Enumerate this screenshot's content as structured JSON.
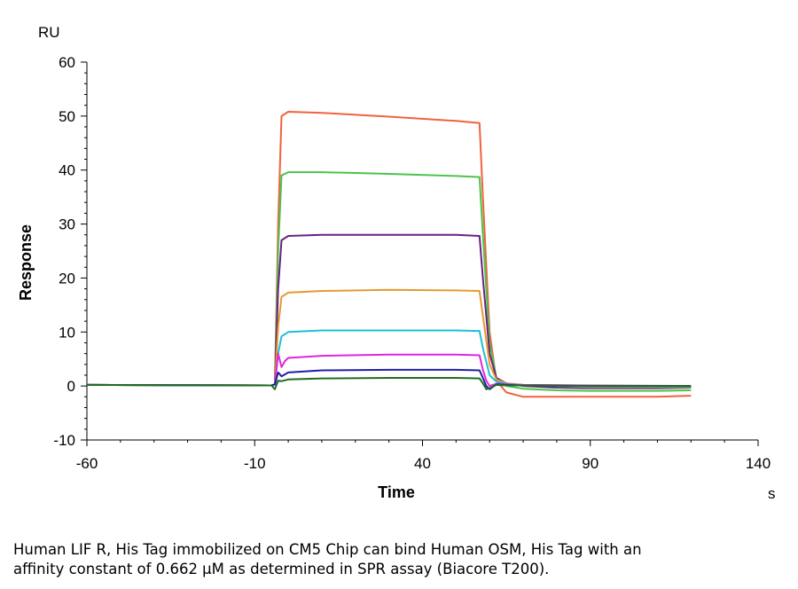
{
  "chart_data": {
    "type": "line",
    "ylabel": "Response",
    "xlabel": "Time",
    "y_unit": "RU",
    "x_unit": "s",
    "xlim": [
      -60,
      140
    ],
    "ylim": [
      -10,
      60
    ],
    "x_ticks": [
      "-60",
      "-10",
      "40",
      "90",
      "140"
    ],
    "y_ticks": [
      "-10",
      "0",
      "10",
      "20",
      "30",
      "40",
      "50",
      "60"
    ],
    "grid": false,
    "series": [
      {
        "color": "#F0623F",
        "x": [
          -60,
          -5,
          -4,
          -3,
          -2,
          0,
          10,
          30,
          50,
          57,
          58,
          60,
          62,
          65,
          70,
          80,
          90,
          100,
          110,
          120
        ],
        "y": [
          0.2,
          0.1,
          0.3,
          30,
          50,
          50.8,
          50.6,
          49.9,
          49.1,
          48.7,
          35,
          10,
          1,
          -1.2,
          -2,
          -2,
          -2,
          -2,
          -2,
          -1.8
        ]
      },
      {
        "color": "#4CC34C",
        "x": [
          -60,
          -5,
          -4,
          -3,
          -2,
          0,
          10,
          30,
          50,
          57,
          58,
          60,
          62,
          65,
          70,
          80,
          90,
          100,
          110,
          120
        ],
        "y": [
          0.2,
          0.1,
          0.3,
          25,
          39,
          39.6,
          39.6,
          39.3,
          38.9,
          38.7,
          28,
          8,
          1.5,
          0,
          -0.5,
          -0.8,
          -0.9,
          -0.9,
          -0.9,
          -0.8
        ]
      },
      {
        "color": "#6B1F82",
        "x": [
          -60,
          -5,
          -4,
          -3,
          -2,
          0,
          10,
          30,
          50,
          57,
          58,
          60,
          62,
          65,
          70,
          80,
          90,
          100,
          110,
          120
        ],
        "y": [
          0.2,
          0.1,
          0.3,
          18,
          27,
          27.8,
          28,
          28,
          28,
          27.8,
          20,
          6,
          1.5,
          0.5,
          0,
          -0.3,
          -0.4,
          -0.4,
          -0.4,
          -0.3
        ]
      },
      {
        "color": "#E59A2E",
        "x": [
          -60,
          -5,
          -4,
          -3,
          -2,
          0,
          10,
          30,
          50,
          57,
          58,
          60,
          62,
          65,
          70,
          80,
          90,
          100,
          110,
          120
        ],
        "y": [
          0.2,
          0.1,
          0.3,
          11,
          16.5,
          17.3,
          17.6,
          17.8,
          17.7,
          17.6,
          13,
          4,
          1.2,
          0.5,
          0.2,
          0,
          -0.2,
          -0.2,
          -0.2,
          -0.2
        ]
      },
      {
        "color": "#1EC0D2",
        "x": [
          -60,
          -5,
          -4,
          -3,
          -2,
          0,
          10,
          30,
          50,
          57,
          58,
          60,
          62,
          65,
          70,
          80,
          90,
          100,
          110,
          120
        ],
        "y": [
          0.2,
          0.1,
          0.3,
          6,
          9.2,
          10,
          10.3,
          10.3,
          10.3,
          10.2,
          7,
          2,
          0.8,
          0.4,
          0.2,
          0,
          -0.1,
          -0.1,
          -0.1,
          -0.1
        ]
      },
      {
        "color": "#DE27DE",
        "x": [
          -60,
          -5,
          -4,
          -3,
          -2,
          -1,
          0,
          10,
          30,
          50,
          57,
          58,
          59,
          60,
          62,
          65,
          70,
          90,
          120
        ],
        "y": [
          0.2,
          0.1,
          0.3,
          6,
          3.5,
          4.6,
          5.2,
          5.6,
          5.8,
          5.8,
          5.7,
          3,
          1,
          0,
          0.4,
          0.3,
          0.2,
          0.1,
          0
        ]
      },
      {
        "color": "#1E1EA8",
        "x": [
          -60,
          -5,
          -4,
          -3,
          -2,
          0,
          10,
          30,
          50,
          57,
          58,
          59,
          60,
          62,
          65,
          70,
          90,
          120
        ],
        "y": [
          0.2,
          0.1,
          0.3,
          2.5,
          1.8,
          2.5,
          2.9,
          3,
          3,
          2.9,
          1.5,
          0,
          -0.6,
          0.3,
          0.2,
          0.1,
          0,
          0
        ]
      },
      {
        "color": "#1E6E1E",
        "x": [
          -60,
          -5,
          -4,
          -3,
          -2,
          0,
          10,
          30,
          50,
          57,
          58,
          59,
          60,
          62,
          65,
          70,
          90,
          120
        ],
        "y": [
          0.2,
          0.1,
          -0.6,
          1,
          0.9,
          1.2,
          1.4,
          1.5,
          1.5,
          1.4,
          0.5,
          -0.6,
          -0.4,
          0.2,
          0.1,
          0.1,
          0,
          0
        ]
      }
    ]
  },
  "caption": {
    "line1": "Human LIF R, His Tag immobilized on CM5 Chip can bind Human OSM, His Tag with an",
    "line2": "affinity constant of 0.662 μM as determined in SPR assay (Biacore T200)."
  }
}
